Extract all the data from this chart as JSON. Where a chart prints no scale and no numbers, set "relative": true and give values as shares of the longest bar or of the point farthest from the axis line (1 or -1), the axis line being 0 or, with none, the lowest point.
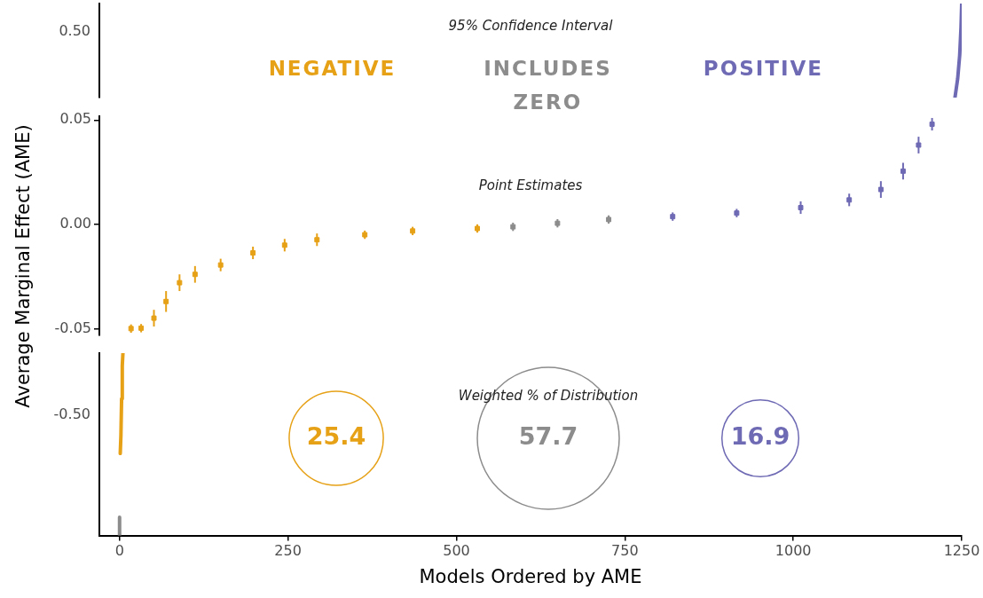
{
  "chart_data": [
    {
      "type": "line",
      "relative": true,
      "title": "95% Confidence Interval",
      "annotations": [
        "0.50"
      ],
      "marker": "none",
      "grid": false,
      "tick_labels": false,
      "xlim": [
        -30,
        1250
      ],
      "xticks": [
        0,
        250,
        500,
        750,
        1000,
        1250
      ],
      "series": [
        {
          "color": "#6f6ab4",
          "x": [
            1240,
            1244,
            1247,
            1249,
            1250
          ],
          "values": [
            0,
            0.2,
            0.45,
            0.75,
            1
          ]
        }
      ]
    },
    {
      "type": "scatter",
      "ylabel": "Average Marginal Effect (AME)",
      "annotations": [
        "Point Estimates"
      ],
      "marker": "square",
      "grid": false,
      "tick_labels": "y",
      "xlim": [
        -30,
        1250
      ],
      "xticks": [
        0,
        250,
        500,
        750,
        1000,
        1250
      ],
      "ylim": [
        -0.053,
        0.052
      ],
      "yticks": [
        {
          "value": -0.05,
          "label": "-0.05"
        },
        {
          "value": 0,
          "label": "0.00"
        },
        {
          "value": 0.05,
          "label": "0.05"
        }
      ],
      "series": [
        {
          "name": "NEGATIVE",
          "color": "#e6a117",
          "x": [
            17,
            32,
            51,
            69,
            89,
            112,
            150,
            198,
            245,
            293,
            364,
            435,
            531
          ],
          "values": [
            -0.05,
            -0.0498,
            -0.045,
            -0.037,
            -0.028,
            -0.024,
            -0.0195,
            -0.0137,
            -0.01,
            -0.0074,
            -0.005,
            -0.0032,
            -0.002
          ],
          "errors": [
            0.002,
            0.002,
            0.004,
            0.005,
            0.004,
            0.004,
            0.003,
            0.003,
            0.003,
            0.003,
            0.002,
            0.002,
            0.002
          ]
        },
        {
          "name": "INCLUDES ZERO",
          "color": "#8c8c8c",
          "x": [
            584,
            650,
            726
          ],
          "values": [
            -0.0012,
            0.0005,
            0.0023
          ],
          "errors": [
            0.002,
            0.002,
            0.002
          ]
        },
        {
          "name": "POSITIVE",
          "color": "#6f6ab4",
          "x": [
            821,
            916,
            1011,
            1083,
            1130,
            1163,
            1186,
            1206
          ],
          "values": [
            0.0037,
            0.0054,
            0.008,
            0.0117,
            0.0167,
            0.0255,
            0.038,
            0.048
          ],
          "errors": [
            0.002,
            0.002,
            0.003,
            0.003,
            0.004,
            0.004,
            0.004,
            0.003
          ]
        }
      ]
    },
    {
      "type": "line",
      "relative": true,
      "xlabel": "Models Ordered by AME",
      "annotations": [
        "-0.50"
      ],
      "marker": "none",
      "grid": false,
      "tick_labels": "x",
      "xlim": [
        -30,
        1250
      ],
      "xticks": [
        0,
        250,
        500,
        750,
        1000,
        1250
      ],
      "series": [
        {
          "color": "#8c8c8c",
          "x": [
            0,
            0
          ],
          "values": [
            0,
            0.1
          ]
        },
        {
          "color": "#e6a117",
          "x": [
            1,
            2,
            3,
            4,
            5
          ],
          "values": [
            0.45,
            0.55,
            0.75,
            0.93,
            1
          ]
        }
      ]
    },
    {
      "type": "other",
      "title": "Weighted % of Distribution",
      "categories": [
        null,
        null,
        null
      ],
      "values": [
        25.4,
        57.7,
        16.9
      ],
      "colors": [
        "#e6a117",
        "#8c8c8c",
        "#6f6ab4"
      ],
      "data_labels": true
    }
  ]
}
